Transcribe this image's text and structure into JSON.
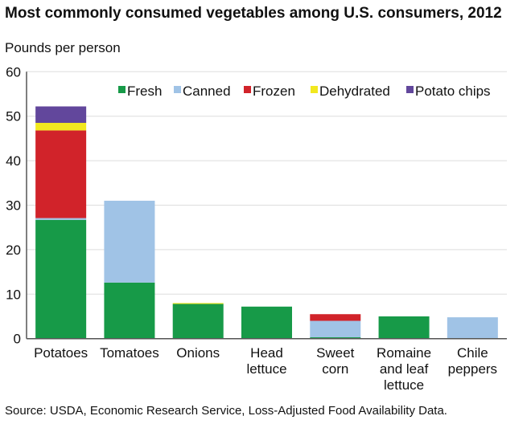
{
  "chart_data": {
    "type": "bar",
    "stacked": true,
    "title": "Most commonly consumed vegetables among U.S. consumers, 2012",
    "ylabel": "Pounds per person",
    "xlabel": "",
    "source": "Source: USDA, Economic Research Service, Loss-Adjusted Food Availability Data.",
    "ylim": [
      0,
      60
    ],
    "yticks": [
      0,
      10,
      20,
      30,
      40,
      50,
      60
    ],
    "grid": true,
    "legend_position": "top",
    "categories": [
      [
        "Potatoes"
      ],
      [
        "Tomatoes"
      ],
      [
        "Onions"
      ],
      [
        "Head",
        "lettuce"
      ],
      [
        "Sweet",
        "corn"
      ],
      [
        "Romaine",
        "and leaf",
        "lettuce"
      ],
      [
        "Chile",
        "peppers"
      ]
    ],
    "series": [
      {
        "name": "Fresh",
        "color": "#179a48",
        "values": [
          26.7,
          12.6,
          7.8,
          7.2,
          0.3,
          5.0,
          0
        ]
      },
      {
        "name": "Canned",
        "color": "#a0c3e6",
        "values": [
          0.4,
          18.4,
          0,
          0,
          3.7,
          0,
          4.8
        ]
      },
      {
        "name": "Frozen",
        "color": "#d1232a",
        "values": [
          19.7,
          0,
          0,
          0,
          1.5,
          0,
          0
        ]
      },
      {
        "name": "Dehydrated",
        "color": "#f2e81f",
        "values": [
          1.7,
          0,
          0.2,
          0,
          0,
          0,
          0
        ]
      },
      {
        "name": "Potato chips",
        "color": "#62479c",
        "values": [
          3.7,
          0,
          0,
          0,
          0,
          0,
          0
        ]
      }
    ]
  }
}
